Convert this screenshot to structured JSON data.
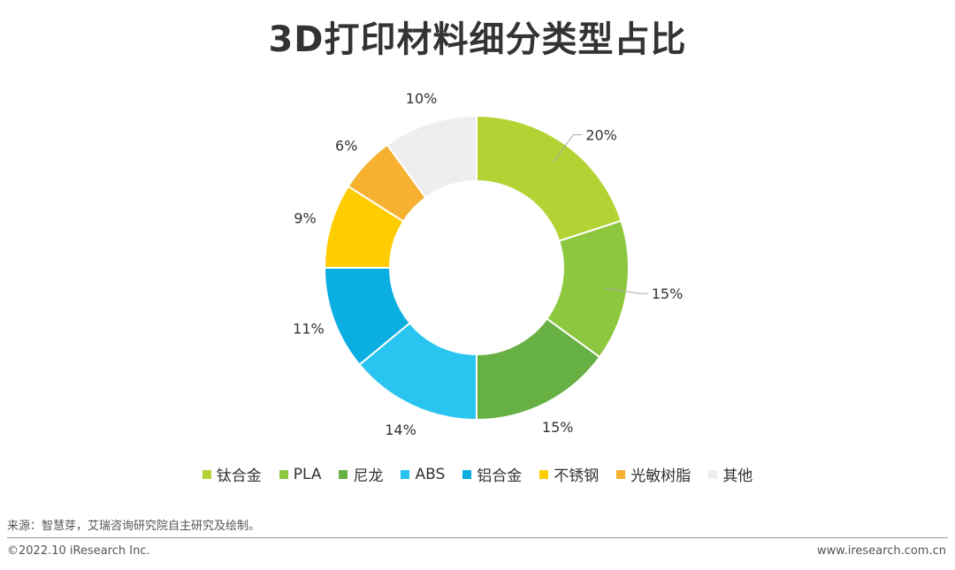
{
  "chart_data": {
    "type": "pie",
    "title": "3D打印材料细分类型占比",
    "categories": [
      "钛合金",
      "PLA",
      "尼龙",
      "ABS",
      "铝合金",
      "不锈钢",
      "光敏树脂",
      "其他"
    ],
    "values": [
      20,
      15,
      15,
      14,
      11,
      9,
      6,
      10
    ],
    "value_labels": [
      "20%",
      "15%",
      "15%",
      "14%",
      "11%",
      "9%",
      "6%",
      "10%"
    ],
    "colors": [
      "#b3d334",
      "#8dc63f",
      "#67b044",
      "#29c5f0",
      "#0aaee0",
      "#ffcc00",
      "#f6b131",
      "#eeeeee"
    ],
    "donut": true,
    "legend_position": "bottom"
  },
  "source": "来源：智慧芽，艾瑞咨询研究院自主研究及绘制。",
  "copyright": "©2022.10 iResearch Inc.",
  "website": "www.iresearch.com.cn"
}
